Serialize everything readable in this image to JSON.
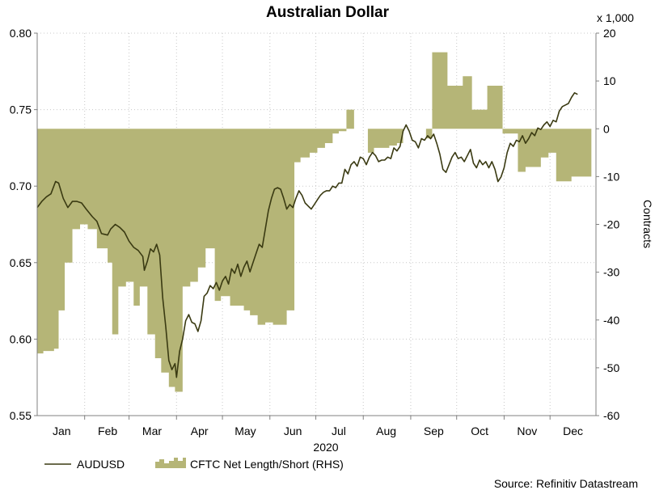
{
  "chart_data": {
    "type": "line",
    "title": "Australian Dollar",
    "year_label": "2020",
    "xlabel": "",
    "ylabel_left": "",
    "ylabel_right": "Contracts",
    "right_multiplier": "x 1,000",
    "source": "Source: Refinitiv Datastream",
    "grid": true,
    "legend_position": "bottom-left",
    "month_labels": [
      "Jan",
      "Feb",
      "Mar",
      "Apr",
      "May",
      "Jun",
      "Jul",
      "Aug",
      "Sep",
      "Oct",
      "Nov",
      "Dec"
    ],
    "month_days": [
      16,
      46,
      75,
      106,
      136,
      167,
      197,
      228,
      259,
      289,
      320,
      350
    ],
    "x_range_days": [
      0,
      365
    ],
    "ylim_left": [
      0.55,
      0.8
    ],
    "ylim_right": [
      -60,
      20
    ],
    "yticks_left": [
      "0.55",
      "0.60",
      "0.65",
      "0.70",
      "0.75",
      "0.80"
    ],
    "yticks_right": [
      "-60",
      "-50",
      "-40",
      "-30",
      "-20",
      "-10",
      "0",
      "10",
      "20"
    ],
    "yticks_left_values": [
      0.55,
      0.6,
      0.65,
      0.7,
      0.75,
      0.8
    ],
    "yticks_right_values": [
      -60,
      -50,
      -40,
      -30,
      -20,
      -10,
      0,
      10,
      20
    ],
    "colors": {
      "audusd": "#3a3a12",
      "cftc": "#b5b577",
      "grid": "#c8c8c8",
      "axis": "#808080"
    },
    "series": [
      {
        "name": "AUDUSD",
        "type": "line",
        "axis": "left",
        "points": [
          [
            0,
            0.686
          ],
          [
            3,
            0.69
          ],
          [
            6,
            0.693
          ],
          [
            9,
            0.695
          ],
          [
            12,
            0.703
          ],
          [
            14,
            0.702
          ],
          [
            17,
            0.692
          ],
          [
            20,
            0.686
          ],
          [
            23,
            0.69
          ],
          [
            26,
            0.69
          ],
          [
            29,
            0.689
          ],
          [
            32,
            0.685
          ],
          [
            36,
            0.68
          ],
          [
            39,
            0.677
          ],
          [
            42,
            0.669
          ],
          [
            46,
            0.668
          ],
          [
            48,
            0.672
          ],
          [
            51,
            0.675
          ],
          [
            54,
            0.673
          ],
          [
            57,
            0.67
          ],
          [
            60,
            0.664
          ],
          [
            63,
            0.66
          ],
          [
            66,
            0.658
          ],
          [
            69,
            0.654
          ],
          [
            70,
            0.645
          ],
          [
            72,
            0.651
          ],
          [
            74,
            0.659
          ],
          [
            76,
            0.657
          ],
          [
            78,
            0.662
          ],
          [
            80,
            0.655
          ],
          [
            82,
            0.627
          ],
          [
            84,
            0.608
          ],
          [
            86,
            0.586
          ],
          [
            88,
            0.58
          ],
          [
            90,
            0.584
          ],
          [
            91,
            0.575
          ],
          [
            93,
            0.592
          ],
          [
            95,
            0.6
          ],
          [
            97,
            0.612
          ],
          [
            99,
            0.616
          ],
          [
            101,
            0.611
          ],
          [
            103,
            0.61
          ],
          [
            105,
            0.605
          ],
          [
            107,
            0.612
          ],
          [
            109,
            0.628
          ],
          [
            111,
            0.63
          ],
          [
            113,
            0.635
          ],
          [
            115,
            0.633
          ],
          [
            117,
            0.637
          ],
          [
            119,
            0.632
          ],
          [
            121,
            0.638
          ],
          [
            123,
            0.641
          ],
          [
            125,
            0.636
          ],
          [
            127,
            0.646
          ],
          [
            129,
            0.643
          ],
          [
            131,
            0.649
          ],
          [
            133,
            0.641
          ],
          [
            135,
            0.647
          ],
          [
            137,
            0.651
          ],
          [
            139,
            0.644
          ],
          [
            141,
            0.65
          ],
          [
            143,
            0.656
          ],
          [
            145,
            0.662
          ],
          [
            147,
            0.66
          ],
          [
            149,
            0.672
          ],
          [
            151,
            0.684
          ],
          [
            153,
            0.692
          ],
          [
            155,
            0.698
          ],
          [
            157,
            0.699
          ],
          [
            159,
            0.698
          ],
          [
            161,
            0.692
          ],
          [
            163,
            0.685
          ],
          [
            165,
            0.688
          ],
          [
            167,
            0.686
          ],
          [
            169,
            0.692
          ],
          [
            171,
            0.697
          ],
          [
            173,
            0.694
          ],
          [
            175,
            0.689
          ],
          [
            177,
            0.687
          ],
          [
            179,
            0.685
          ],
          [
            181,
            0.688
          ],
          [
            183,
            0.691
          ],
          [
            185,
            0.694
          ],
          [
            187,
            0.696
          ],
          [
            189,
            0.697
          ],
          [
            191,
            0.697
          ],
          [
            193,
            0.7
          ],
          [
            195,
            0.699
          ],
          [
            197,
            0.702
          ],
          [
            199,
            0.702
          ],
          [
            201,
            0.711
          ],
          [
            203,
            0.708
          ],
          [
            205,
            0.714
          ],
          [
            207,
            0.716
          ],
          [
            209,
            0.713
          ],
          [
            211,
            0.719
          ],
          [
            213,
            0.718
          ],
          [
            215,
            0.714
          ],
          [
            217,
            0.719
          ],
          [
            219,
            0.722
          ],
          [
            221,
            0.72
          ],
          [
            223,
            0.716
          ],
          [
            225,
            0.717
          ],
          [
            227,
            0.717
          ],
          [
            229,
            0.719
          ],
          [
            231,
            0.718
          ],
          [
            233,
            0.725
          ],
          [
            235,
            0.723
          ],
          [
            237,
            0.726
          ],
          [
            239,
            0.736
          ],
          [
            241,
            0.74
          ],
          [
            243,
            0.736
          ],
          [
            245,
            0.73
          ],
          [
            247,
            0.729
          ],
          [
            249,
            0.725
          ],
          [
            251,
            0.731
          ],
          [
            253,
            0.73
          ],
          [
            255,
            0.733
          ],
          [
            257,
            0.731
          ],
          [
            259,
            0.734
          ],
          [
            261,
            0.728
          ],
          [
            263,
            0.721
          ],
          [
            265,
            0.711
          ],
          [
            267,
            0.709
          ],
          [
            269,
            0.714
          ],
          [
            271,
            0.719
          ],
          [
            273,
            0.722
          ],
          [
            275,
            0.718
          ],
          [
            277,
            0.719
          ],
          [
            279,
            0.716
          ],
          [
            281,
            0.72
          ],
          [
            283,
            0.724
          ],
          [
            285,
            0.715
          ],
          [
            287,
            0.712
          ],
          [
            289,
            0.717
          ],
          [
            291,
            0.714
          ],
          [
            293,
            0.716
          ],
          [
            295,
            0.712
          ],
          [
            297,
            0.716
          ],
          [
            299,
            0.711
          ],
          [
            301,
            0.703
          ],
          [
            303,
            0.706
          ],
          [
            305,
            0.712
          ],
          [
            307,
            0.722
          ],
          [
            309,
            0.728
          ],
          [
            311,
            0.726
          ],
          [
            313,
            0.73
          ],
          [
            315,
            0.729
          ],
          [
            317,
            0.733
          ],
          [
            319,
            0.728
          ],
          [
            321,
            0.731
          ],
          [
            323,
            0.735
          ],
          [
            325,
            0.733
          ],
          [
            327,
            0.738
          ],
          [
            329,
            0.737
          ],
          [
            331,
            0.74
          ],
          [
            333,
            0.742
          ],
          [
            335,
            0.739
          ],
          [
            337,
            0.743
          ],
          [
            339,
            0.742
          ],
          [
            341,
            0.749
          ],
          [
            343,
            0.752
          ],
          [
            345,
            0.753
          ],
          [
            347,
            0.754
          ],
          [
            349,
            0.758
          ],
          [
            351,
            0.761
          ],
          [
            353,
            0.76
          ]
        ]
      },
      {
        "name": "CFTC Net Length/Short (RHS)",
        "type": "step-area",
        "axis": "right",
        "steps": [
          [
            0,
            -47
          ],
          [
            4,
            -46.5
          ],
          [
            11,
            -46
          ],
          [
            14,
            -38
          ],
          [
            18,
            -28
          ],
          [
            23,
            -21
          ],
          [
            28,
            -20
          ],
          [
            33,
            -21
          ],
          [
            39,
            -25
          ],
          [
            46,
            -28
          ],
          [
            49,
            -43
          ],
          [
            53,
            -33
          ],
          [
            58,
            -32
          ],
          [
            63,
            -37
          ],
          [
            67,
            -33
          ],
          [
            72,
            -43
          ],
          [
            77,
            -48
          ],
          [
            81,
            -51
          ],
          [
            86,
            -54
          ],
          [
            90,
            -55
          ],
          [
            95,
            -33
          ],
          [
            100,
            -32
          ],
          [
            105,
            -29
          ],
          [
            110,
            -25
          ],
          [
            116,
            -36
          ],
          [
            120,
            -35
          ],
          [
            126,
            -37
          ],
          [
            130,
            -37
          ],
          [
            135,
            -38
          ],
          [
            139,
            -39
          ],
          [
            144,
            -41
          ],
          [
            149,
            -40.5
          ],
          [
            154,
            -41
          ],
          [
            158,
            -41
          ],
          [
            163,
            -38
          ],
          [
            168,
            -7
          ],
          [
            172,
            -6
          ],
          [
            178,
            -5
          ],
          [
            183,
            -4
          ],
          [
            188,
            -3
          ],
          [
            193,
            -1
          ],
          [
            197,
            -0.5
          ],
          [
            202,
            4
          ],
          [
            207,
            0
          ],
          [
            211,
            0
          ],
          [
            216,
            -5
          ],
          [
            220,
            -4
          ],
          [
            225,
            -4
          ],
          [
            230,
            -3.5
          ],
          [
            235,
            -3
          ],
          [
            239,
            0
          ],
          [
            244,
            0
          ],
          [
            249,
            0
          ],
          [
            254,
            -2
          ],
          [
            258,
            16
          ],
          [
            263,
            16
          ],
          [
            268,
            9
          ],
          [
            273,
            9
          ],
          [
            278,
            11
          ],
          [
            284,
            4
          ],
          [
            289,
            4
          ],
          [
            294,
            9
          ],
          [
            299,
            9
          ],
          [
            304,
            -1
          ],
          [
            309,
            -1
          ],
          [
            314,
            -9
          ],
          [
            319,
            -8
          ],
          [
            324,
            -8
          ],
          [
            329,
            -6
          ],
          [
            334,
            -5
          ],
          [
            339,
            -11
          ],
          [
            344,
            -11
          ],
          [
            349,
            -10
          ],
          [
            354,
            -10
          ],
          [
            358,
            -10
          ]
        ]
      }
    ]
  }
}
